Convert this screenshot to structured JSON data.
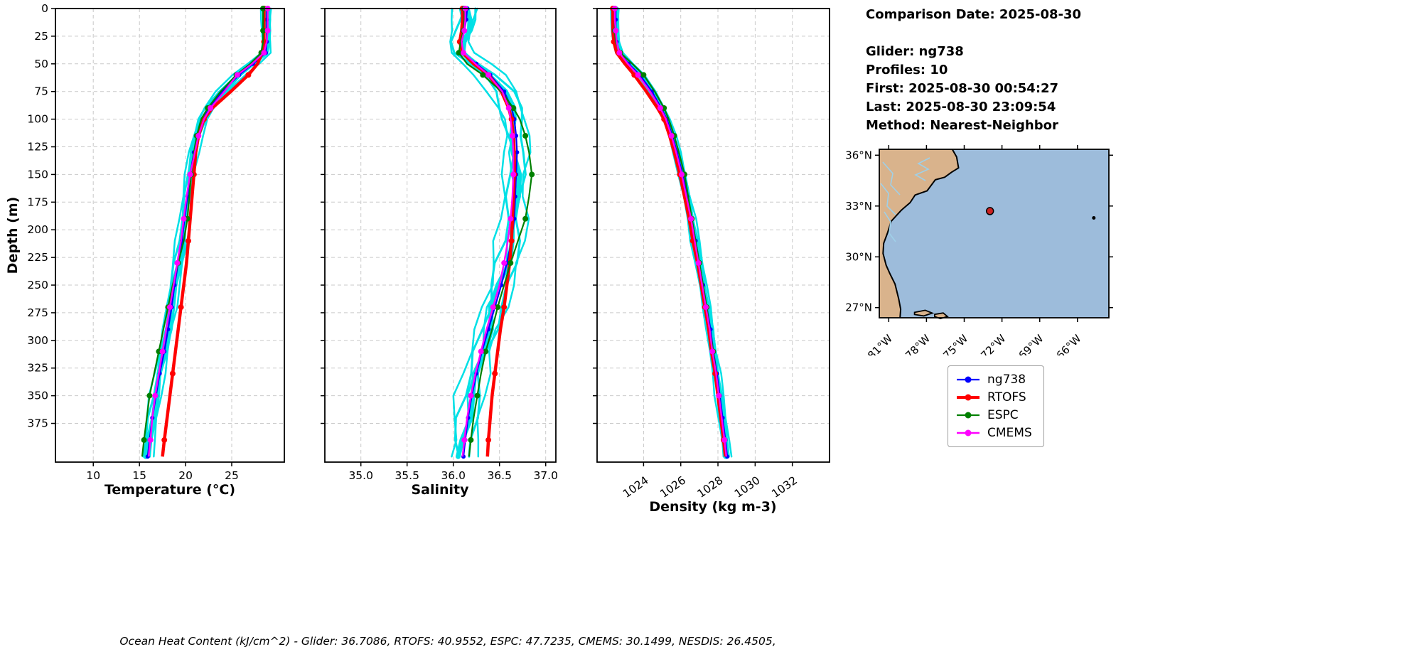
{
  "chart_data": {
    "type": "line",
    "title": "",
    "ylabel": "Depth (m)",
    "ylim": [
      0,
      410
    ],
    "yticks": [
      0,
      25,
      50,
      75,
      100,
      125,
      150,
      175,
      200,
      225,
      250,
      275,
      300,
      325,
      350,
      375
    ],
    "grid": true,
    "depths": [
      0,
      10,
      20,
      30,
      40,
      50,
      60,
      75,
      90,
      100,
      115,
      130,
      150,
      170,
      190,
      210,
      230,
      250,
      270,
      290,
      310,
      330,
      350,
      370,
      390,
      405
    ],
    "draw_order": [
      "ng738",
      "RTOFS",
      "ESPC",
      "CMEMS"
    ],
    "raw_follows": "ng738",
    "styles": {
      "glider_raw": {
        "color": "#00e0e6",
        "line_width": 3,
        "marker_every": 0,
        "marker_radius": 0
      },
      "ng738": {
        "color": "#0000ff",
        "line_width": 2.2,
        "marker_every": 1,
        "marker_radius": 3
      },
      "RTOFS": {
        "color": "#ff0000",
        "line_width": 4.5,
        "marker_every": 3,
        "marker_radius": 4
      },
      "ESPC": {
        "color": "#008000",
        "line_width": 2.2,
        "marker_every": 2,
        "marker_radius": 4
      },
      "CMEMS": {
        "color": "#ff00ff",
        "line_width": 2.4,
        "marker_every": 2,
        "marker_radius": 4
      }
    },
    "panels": [
      {
        "name": "temperature",
        "xlabel": "Temperature (°C)",
        "xlim": [
          5.9,
          30.7
        ],
        "xticks": [
          10,
          15,
          20,
          25
        ],
        "tick_decimals": 0,
        "tick_rotation": 0,
        "series": [
          {
            "name": "ng738",
            "values": [
              28.8,
              28.8,
              28.8,
              28.8,
              28.7,
              27.3,
              25.8,
              24.0,
              22.6,
              21.9,
              21.3,
              20.9,
              20.5,
              20.2,
              19.9,
              19.6,
              19.2,
              18.8,
              18.5,
              18.1,
              17.7,
              17.2,
              16.8,
              16.4,
              16.1,
              15.9
            ]
          },
          {
            "name": "RTOFS",
            "values": [
              28.5,
              28.5,
              28.5,
              28.5,
              28.3,
              27.8,
              26.8,
              24.9,
              22.9,
              22.0,
              21.4,
              21.1,
              20.9,
              20.7,
              20.5,
              20.3,
              20.1,
              19.8,
              19.5,
              19.2,
              18.9,
              18.6,
              18.3,
              18.0,
              17.7,
              17.5
            ]
          },
          {
            "name": "ESPC",
            "values": [
              28.4,
              28.4,
              28.4,
              28.4,
              28.2,
              27.0,
              25.5,
              23.8,
              22.4,
              21.7,
              21.2,
              20.9,
              20.6,
              20.4,
              20.2,
              19.8,
              19.2,
              18.6,
              18.1,
              17.6,
              17.1,
              16.6,
              16.1,
              15.8,
              15.5,
              15.3
            ]
          },
          {
            "name": "CMEMS",
            "values": [
              28.9,
              28.9,
              28.9,
              28.8,
              28.5,
              27.2,
              25.6,
              24.2,
              22.7,
              22.0,
              21.4,
              21.0,
              20.5,
              20.1,
              19.8,
              19.5,
              19.1,
              18.7,
              18.3,
              17.9,
              17.5,
              17.1,
              16.7,
              16.4,
              16.2,
              16.0
            ]
          }
        ],
        "raw_band": {
          "amplitude": 0.15,
          "wavelength": 70,
          "lines": [
            {
              "offset": 0,
              "width": 7
            },
            {
              "offset": -0.3,
              "width": 3
            },
            {
              "offset": -0.55,
              "width": 2.5
            },
            {
              "offset": 0.25,
              "width": 3
            },
            {
              "offset": 0.5,
              "width": 2.5
            },
            {
              "offset": -0.12,
              "width": 2.5
            }
          ]
        }
      },
      {
        "name": "salinity",
        "xlabel": "Salinity",
        "xlim": [
          34.61,
          37.11
        ],
        "xticks": [
          35.0,
          35.5,
          36.0,
          36.5,
          37.0
        ],
        "tick_decimals": 1,
        "tick_rotation": 0,
        "series": [
          {
            "name": "ng738",
            "values": [
              36.15,
              36.14,
              36.12,
              36.08,
              36.1,
              36.25,
              36.4,
              36.55,
              36.63,
              36.66,
              36.68,
              36.69,
              36.68,
              36.67,
              36.66,
              36.63,
              36.58,
              36.52,
              36.45,
              36.38,
              36.31,
              36.25,
              36.2,
              36.16,
              36.13,
              36.11
            ]
          },
          {
            "name": "RTOFS",
            "values": [
              36.1,
              36.1,
              36.09,
              36.07,
              36.1,
              36.22,
              36.38,
              36.52,
              36.6,
              36.63,
              36.65,
              36.66,
              36.66,
              36.65,
              36.64,
              36.63,
              36.61,
              36.58,
              36.55,
              36.51,
              36.48,
              36.45,
              36.42,
              36.4,
              36.38,
              36.37
            ]
          },
          {
            "name": "ESPC",
            "values": [
              36.12,
              36.12,
              36.11,
              36.08,
              36.06,
              36.15,
              36.32,
              36.52,
              36.65,
              36.72,
              36.78,
              36.82,
              36.85,
              36.82,
              36.78,
              36.7,
              36.62,
              36.55,
              36.48,
              36.42,
              36.35,
              36.3,
              36.26,
              36.22,
              36.19,
              36.17
            ]
          },
          {
            "name": "CMEMS",
            "values": [
              36.13,
              36.13,
              36.12,
              36.09,
              36.11,
              36.24,
              36.38,
              36.53,
              36.6,
              36.62,
              36.64,
              36.65,
              36.65,
              36.64,
              36.62,
              36.59,
              36.55,
              36.5,
              36.43,
              36.36,
              36.3,
              36.24,
              36.19,
              36.15,
              36.12,
              36.1
            ]
          }
        ],
        "raw_band": {
          "amplitude": 0.04,
          "wavelength": 70,
          "lines": [
            {
              "offset": 0,
              "width": 7
            },
            {
              "offset": -0.08,
              "width": 3
            },
            {
              "offset": -0.14,
              "width": 2.5
            },
            {
              "offset": 0.07,
              "width": 3
            },
            {
              "offset": 0.12,
              "width": 2.5
            },
            {
              "offset": -0.03,
              "width": 2.5
            }
          ]
        }
      },
      {
        "name": "density",
        "xlabel": "Density (kg m-3)",
        "xlim": [
          1021.5,
          1034.0
        ],
        "xticks": [
          1024,
          1026,
          1028,
          1030,
          1032
        ],
        "tick_decimals": 0,
        "tick_rotation": -35,
        "series": [
          {
            "name": "ng738",
            "values": [
              1022.5,
              1022.5,
              1022.5,
              1022.55,
              1022.7,
              1023.2,
              1023.8,
              1024.45,
              1024.95,
              1025.25,
              1025.55,
              1025.8,
              1026.1,
              1026.35,
              1026.6,
              1026.8,
              1027.0,
              1027.2,
              1027.4,
              1027.6,
              1027.75,
              1027.95,
              1028.1,
              1028.25,
              1028.4,
              1028.5
            ]
          },
          {
            "name": "RTOFS",
            "values": [
              1022.35,
              1022.35,
              1022.35,
              1022.4,
              1022.55,
              1023.0,
              1023.5,
              1024.15,
              1024.75,
              1025.1,
              1025.4,
              1025.65,
              1025.95,
              1026.2,
              1026.45,
              1026.65,
              1026.9,
              1027.1,
              1027.3,
              1027.5,
              1027.65,
              1027.85,
              1028.0,
              1028.15,
              1028.3,
              1028.4
            ]
          },
          {
            "name": "ESPC",
            "values": [
              1022.45,
              1022.45,
              1022.45,
              1022.5,
              1022.75,
              1023.4,
              1024.0,
              1024.6,
              1025.1,
              1025.35,
              1025.65,
              1025.9,
              1026.2,
              1026.4,
              1026.6,
              1026.8,
              1027.0,
              1027.2,
              1027.4,
              1027.55,
              1027.75,
              1027.9,
              1028.05,
              1028.2,
              1028.35,
              1028.45
            ]
          },
          {
            "name": "CMEMS",
            "values": [
              1022.45,
              1022.45,
              1022.5,
              1022.55,
              1022.7,
              1023.15,
              1023.7,
              1024.35,
              1024.9,
              1025.2,
              1025.5,
              1025.75,
              1026.05,
              1026.3,
              1026.55,
              1026.75,
              1026.95,
              1027.15,
              1027.35,
              1027.55,
              1027.7,
              1027.9,
              1028.05,
              1028.2,
              1028.35,
              1028.45
            ]
          }
        ],
        "raw_band": {
          "amplitude": 0.05,
          "wavelength": 70,
          "lines": [
            {
              "offset": 0,
              "width": 7
            },
            {
              "offset": -0.13,
              "width": 3
            },
            {
              "offset": -0.22,
              "width": 2.5
            },
            {
              "offset": 0.1,
              "width": 3
            },
            {
              "offset": 0.18,
              "width": 2.5
            },
            {
              "offset": -0.05,
              "width": 2.5
            }
          ]
        }
      }
    ],
    "legend_position": "right"
  },
  "info": {
    "lines": [
      "Comparison Date: 2025-08-30",
      "",
      "Glider: ng738",
      "Profiles: 10",
      "First: 2025-08-30 00:54:27",
      "Last: 2025-08-30 23:09:54",
      "Method: Nearest-Neighbor"
    ]
  },
  "map": {
    "lat_range": [
      26.4,
      36.35
    ],
    "lon_range": [
      -81.75,
      -63.5
    ],
    "lat_ticks": [
      {
        "value": 36,
        "label": "36°N"
      },
      {
        "value": 33,
        "label": "33°N"
      },
      {
        "value": 30,
        "label": "30°N"
      },
      {
        "value": 27,
        "label": "27°N"
      }
    ],
    "lon_ticks": [
      {
        "value": -81,
        "label": "81°W"
      },
      {
        "value": -78,
        "label": "78°W"
      },
      {
        "value": -75,
        "label": "75°W"
      },
      {
        "value": -72,
        "label": "72°W"
      },
      {
        "value": -69,
        "label": "69°W"
      },
      {
        "value": -66,
        "label": "66°W"
      }
    ],
    "glider_marker": {
      "lat": 32.7,
      "lon": -72.95,
      "color": "#cc2222"
    },
    "land_color": "#d9b38c",
    "ocean_color": "#9dbcdb",
    "river_color": "#9fd0e8",
    "coast_color": "#000000"
  },
  "legend": {
    "items": [
      {
        "label": "ng738"
      },
      {
        "label": "RTOFS"
      },
      {
        "label": "ESPC"
      },
      {
        "label": "CMEMS"
      }
    ]
  },
  "footer": {
    "text": "Ocean Heat Content (kJ/cm^2) - Glider: 36.7086,  RTOFS: 40.9552,  ESPC: 47.7235,  CMEMS: 30.1499,  NESDIS: 26.4505,"
  }
}
